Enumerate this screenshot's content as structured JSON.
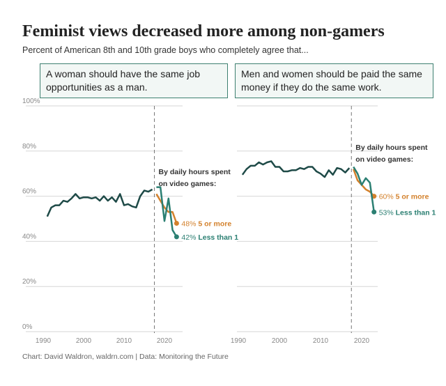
{
  "title": "Feminist views decreased more among non-gamers",
  "subtitle": "Percent of American 8th and 10th grade boys who completely agree that...",
  "footer": "Chart: David Waldron, waldrn.com | Data: Monitoring the Future",
  "colors": {
    "overall": "#1e4a47",
    "less_than_1": "#2b7f72",
    "five_or_more": "#d3812c",
    "grid": "#d6d6d6",
    "box_border": "#3d7f70"
  },
  "chart_data": [
    {
      "type": "line",
      "title": "A woman should have the same job opportunities as a man.",
      "ylim": [
        0,
        100
      ],
      "xlim": [
        1988,
        2024
      ],
      "yticks": [
        "0%",
        "20%",
        "40%",
        "60%",
        "80%",
        "100%"
      ],
      "xticks": [
        "1990",
        "2000",
        "2010",
        "2020"
      ],
      "annotation": "By daily hours spent on video games:",
      "divider_year": 2017.5,
      "overall": {
        "x": [
          1991,
          1992,
          1993,
          1994,
          1995,
          1996,
          1997,
          1998,
          1999,
          2000,
          2001,
          2002,
          2003,
          2004,
          2005,
          2006,
          2007,
          2008,
          2009,
          2010,
          2011,
          2012,
          2013,
          2014,
          2015,
          2016,
          2017
        ],
        "values": [
          51,
          55,
          56,
          56,
          58,
          57.5,
          59,
          61,
          59,
          59.5,
          59.5,
          59,
          59.5,
          58,
          60,
          58,
          59.5,
          57.5,
          61,
          56,
          56.5,
          55.5,
          55,
          60,
          62.5,
          62,
          63
        ]
      },
      "series": [
        {
          "name": "5 or more",
          "end_label": "48%",
          "x": [
            2018,
            2019,
            2020,
            2021,
            2022,
            2023
          ],
          "values": [
            61,
            58,
            55,
            53,
            53,
            48
          ]
        },
        {
          "name": "Less than 1",
          "end_label": "42%",
          "x": [
            2018,
            2019,
            2020,
            2021,
            2022,
            2023
          ],
          "values": [
            64,
            64,
            49,
            59,
            45,
            42
          ]
        }
      ]
    },
    {
      "type": "line",
      "title": "Men and women should be paid the same money if they do the same work.",
      "ylim": [
        0,
        100
      ],
      "xlim": [
        1988,
        2024
      ],
      "xticks": [
        "1990",
        "2000",
        "2010",
        "2020"
      ],
      "annotation": "By daily hours spent on video games:",
      "divider_year": 2017.5,
      "overall": {
        "x": [
          1991,
          1992,
          1993,
          1994,
          1995,
          1996,
          1997,
          1998,
          1999,
          2000,
          2001,
          2002,
          2003,
          2004,
          2005,
          2006,
          2007,
          2008,
          2009,
          2010,
          2011,
          2012,
          2013,
          2014,
          2015,
          2016,
          2017
        ],
        "values": [
          69.5,
          72,
          73.5,
          73.5,
          75,
          74,
          75,
          75.5,
          73,
          73,
          71,
          71,
          71.5,
          71.5,
          72.5,
          72,
          73,
          73,
          71,
          70,
          68.5,
          71.5,
          69.5,
          72.5,
          72,
          70.5,
          72.5
        ]
      },
      "series": [
        {
          "name": "5 or more",
          "end_label": "60%",
          "x": [
            2018,
            2019,
            2020,
            2021,
            2022,
            2023
          ],
          "values": [
            72,
            67,
            65,
            63,
            62,
            60
          ]
        },
        {
          "name": "Less than 1",
          "end_label": "53%",
          "x": [
            2018,
            2019,
            2020,
            2021,
            2022,
            2023
          ],
          "values": [
            73,
            70,
            65,
            68,
            66,
            53
          ]
        }
      ]
    }
  ]
}
